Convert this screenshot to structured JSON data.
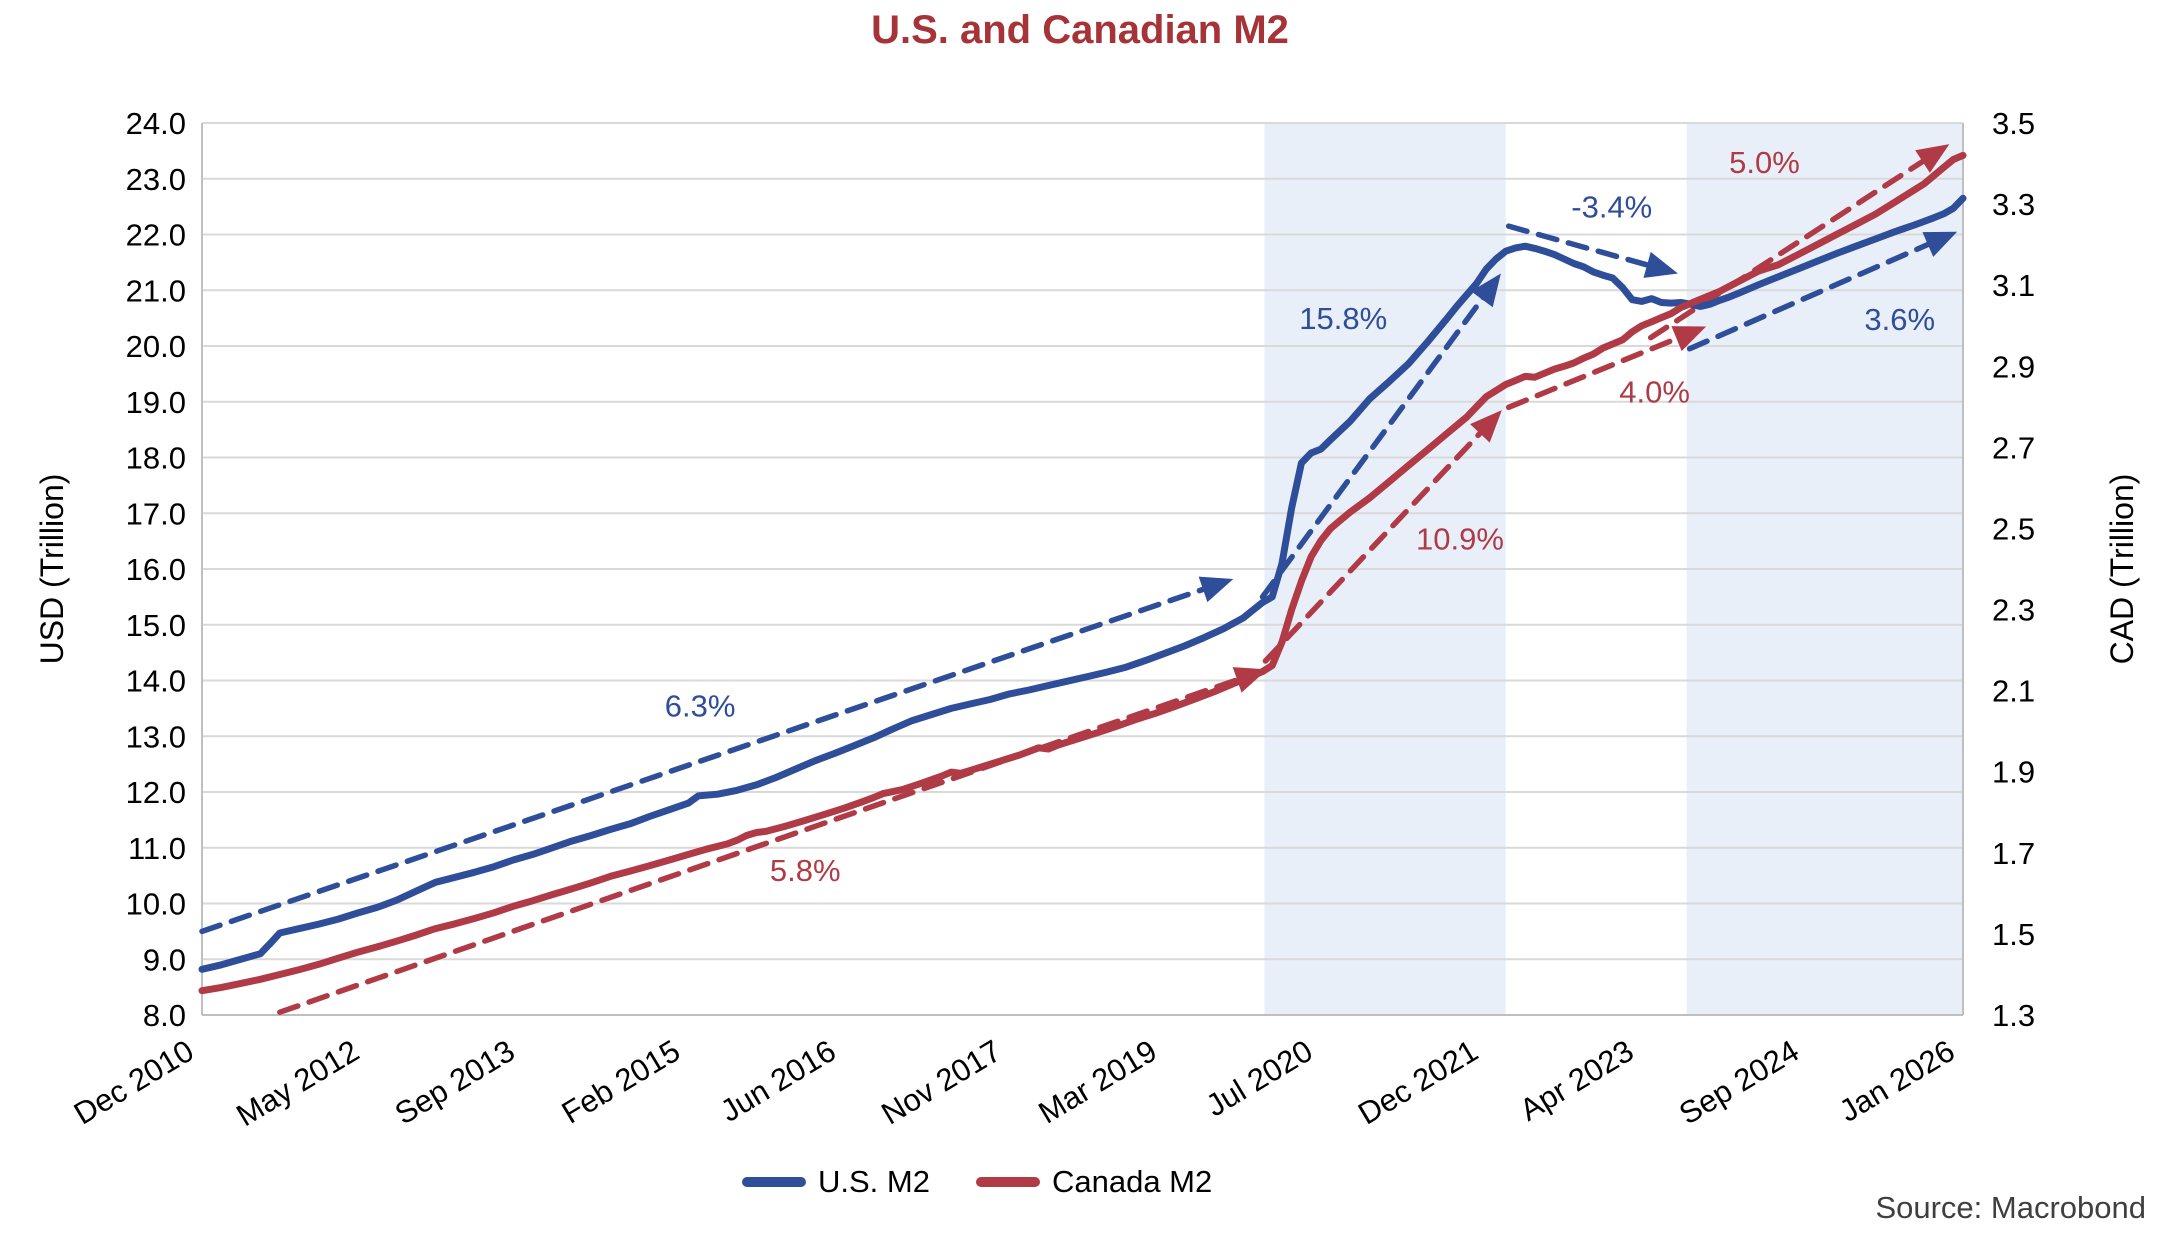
{
  "chart_data": {
    "type": "line",
    "title": "U.S. and Canadian M2",
    "ylabel_left": "USD (Trillion)",
    "ylabel_right": "CAD (Trillion)",
    "source": "Source: Macrobond",
    "colors": {
      "us_blue": "#2F4E99",
      "canada_red": "#B03B46",
      "title_red": "#A63338",
      "band_fill": "#E9EFF8",
      "gridline": "#D9D9D9",
      "axis_border": "#BFBFBF",
      "source_text": "#3F3F3F"
    },
    "y_left": {
      "min": 8.0,
      "max": 24.0,
      "step": 1.0
    },
    "y_right": {
      "min": 1.3,
      "max": 3.5,
      "step": 0.2
    },
    "x_unit": "months since Dec 2010",
    "x_range_months": 181,
    "x_ticks": [
      {
        "label": "Dec 2010",
        "m": 0
      },
      {
        "label": "May 2012",
        "m": 17
      },
      {
        "label": "Sep 2013",
        "m": 33
      },
      {
        "label": "Feb 2015",
        "m": 50
      },
      {
        "label": "Jun 2016",
        "m": 66
      },
      {
        "label": "Nov 2017",
        "m": 83
      },
      {
        "label": "Mar 2019",
        "m": 99
      },
      {
        "label": "Jul 2020",
        "m": 115
      },
      {
        "label": "Dec 2021",
        "m": 132
      },
      {
        "label": "Apr 2023",
        "m": 148
      },
      {
        "label": "Sep 2024",
        "m": 165
      },
      {
        "label": "Jan 2026",
        "m": 181
      }
    ],
    "bands": [
      {
        "from_m": 109.2,
        "to_m": 134.0
      },
      {
        "from_m": 152.6,
        "to_m": 181.0
      }
    ],
    "series": [
      {
        "name": "U.S. M2",
        "axis": "left",
        "color_key": "us_blue",
        "points": [
          [
            0,
            8.82
          ],
          [
            2,
            8.9
          ],
          [
            4,
            9.0
          ],
          [
            6,
            9.1
          ],
          [
            7,
            9.28
          ],
          [
            8,
            9.47
          ],
          [
            10,
            9.55
          ],
          [
            12,
            9.63
          ],
          [
            14,
            9.72
          ],
          [
            16,
            9.83
          ],
          [
            18,
            9.93
          ],
          [
            20,
            10.06
          ],
          [
            22,
            10.22
          ],
          [
            24,
            10.38
          ],
          [
            26,
            10.47
          ],
          [
            28,
            10.56
          ],
          [
            30,
            10.66
          ],
          [
            32,
            10.78
          ],
          [
            34,
            10.88
          ],
          [
            36,
            11.0
          ],
          [
            38,
            11.12
          ],
          [
            40,
            11.22
          ],
          [
            42,
            11.33
          ],
          [
            44,
            11.43
          ],
          [
            46,
            11.56
          ],
          [
            48,
            11.68
          ],
          [
            50,
            11.8
          ],
          [
            51,
            11.93
          ],
          [
            53,
            11.96
          ],
          [
            55,
            12.03
          ],
          [
            57,
            12.13
          ],
          [
            59,
            12.26
          ],
          [
            61,
            12.41
          ],
          [
            63,
            12.56
          ],
          [
            65,
            12.69
          ],
          [
            67,
            12.83
          ],
          [
            69,
            12.97
          ],
          [
            71,
            13.13
          ],
          [
            73,
            13.28
          ],
          [
            75,
            13.39
          ],
          [
            77,
            13.5
          ],
          [
            79,
            13.58
          ],
          [
            81,
            13.66
          ],
          [
            83,
            13.76
          ],
          [
            85,
            13.83
          ],
          [
            87,
            13.91
          ],
          [
            89,
            13.99
          ],
          [
            91,
            14.07
          ],
          [
            93,
            14.15
          ],
          [
            95,
            14.24
          ],
          [
            97,
            14.36
          ],
          [
            99,
            14.49
          ],
          [
            101,
            14.62
          ],
          [
            103,
            14.77
          ],
          [
            105,
            14.93
          ],
          [
            107,
            15.12
          ],
          [
            108,
            15.26
          ],
          [
            109,
            15.4
          ],
          [
            110,
            15.5
          ],
          [
            111,
            16.1
          ],
          [
            112,
            17.1
          ],
          [
            113,
            17.9
          ],
          [
            114,
            18.08
          ],
          [
            115,
            18.15
          ],
          [
            116,
            18.32
          ],
          [
            118,
            18.65
          ],
          [
            120,
            19.05
          ],
          [
            122,
            19.36
          ],
          [
            124,
            19.68
          ],
          [
            126,
            20.08
          ],
          [
            128,
            20.5
          ],
          [
            129,
            20.72
          ],
          [
            131,
            21.12
          ],
          [
            132,
            21.38
          ],
          [
            133,
            21.56
          ],
          [
            134,
            21.7
          ],
          [
            135,
            21.76
          ],
          [
            136,
            21.79
          ],
          [
            137,
            21.75
          ],
          [
            138,
            21.7
          ],
          [
            139,
            21.64
          ],
          [
            140,
            21.56
          ],
          [
            141,
            21.48
          ],
          [
            142,
            21.42
          ],
          [
            143,
            21.33
          ],
          [
            144,
            21.27
          ],
          [
            145,
            21.22
          ],
          [
            146,
            21.05
          ],
          [
            147,
            20.83
          ],
          [
            148,
            20.8
          ],
          [
            149,
            20.85
          ],
          [
            150,
            20.78
          ],
          [
            151,
            20.77
          ],
          [
            152,
            20.78
          ],
          [
            153,
            20.75
          ],
          [
            154,
            20.71
          ],
          [
            155,
            20.75
          ],
          [
            156,
            20.82
          ],
          [
            157,
            20.88
          ],
          [
            158,
            20.95
          ],
          [
            160,
            21.1
          ],
          [
            162,
            21.24
          ],
          [
            164,
            21.38
          ],
          [
            166,
            21.52
          ],
          [
            168,
            21.66
          ],
          [
            170,
            21.79
          ],
          [
            172,
            21.92
          ],
          [
            174,
            22.05
          ],
          [
            176,
            22.17
          ],
          [
            178,
            22.3
          ],
          [
            179,
            22.37
          ],
          [
            180,
            22.47
          ],
          [
            181,
            22.65
          ]
        ]
      },
      {
        "name": "Canada M2",
        "axis": "right",
        "color_key": "canada_red",
        "points": [
          [
            0,
            1.36
          ],
          [
            2,
            1.368
          ],
          [
            4,
            1.378
          ],
          [
            6,
            1.388
          ],
          [
            8,
            1.4
          ],
          [
            10,
            1.412
          ],
          [
            12,
            1.425
          ],
          [
            14,
            1.44
          ],
          [
            16,
            1.455
          ],
          [
            18,
            1.468
          ],
          [
            20,
            1.482
          ],
          [
            22,
            1.497
          ],
          [
            24,
            1.513
          ],
          [
            26,
            1.525
          ],
          [
            28,
            1.538
          ],
          [
            30,
            1.552
          ],
          [
            32,
            1.568
          ],
          [
            34,
            1.582
          ],
          [
            36,
            1.597
          ],
          [
            38,
            1.611
          ],
          [
            40,
            1.626
          ],
          [
            42,
            1.642
          ],
          [
            44,
            1.655
          ],
          [
            46,
            1.668
          ],
          [
            48,
            1.682
          ],
          [
            50,
            1.696
          ],
          [
            52,
            1.71
          ],
          [
            54,
            1.722
          ],
          [
            55,
            1.731
          ],
          [
            56,
            1.743
          ],
          [
            57,
            1.75
          ],
          [
            58,
            1.753
          ],
          [
            60,
            1.766
          ],
          [
            62,
            1.78
          ],
          [
            64,
            1.795
          ],
          [
            66,
            1.81
          ],
          [
            68,
            1.827
          ],
          [
            69,
            1.836
          ],
          [
            70,
            1.846
          ],
          [
            71,
            1.851
          ],
          [
            72,
            1.856
          ],
          [
            74,
            1.872
          ],
          [
            76,
            1.889
          ],
          [
            77,
            1.899
          ],
          [
            78,
            1.896
          ],
          [
            80,
            1.911
          ],
          [
            82,
            1.926
          ],
          [
            84,
            1.941
          ],
          [
            86,
            1.959
          ],
          [
            87,
            1.956
          ],
          [
            88,
            1.966
          ],
          [
            90,
            1.981
          ],
          [
            92,
            1.996
          ],
          [
            94,
            2.012
          ],
          [
            96,
            2.029
          ],
          [
            98,
            2.044
          ],
          [
            100,
            2.061
          ],
          [
            102,
            2.079
          ],
          [
            104,
            2.097
          ],
          [
            106,
            2.117
          ],
          [
            108,
            2.137
          ],
          [
            109,
            2.147
          ],
          [
            110,
            2.162
          ],
          [
            111,
            2.22
          ],
          [
            112,
            2.3
          ],
          [
            113,
            2.37
          ],
          [
            114,
            2.43
          ],
          [
            115,
            2.47
          ],
          [
            116,
            2.5
          ],
          [
            117,
            2.52
          ],
          [
            118,
            2.54
          ],
          [
            120,
            2.575
          ],
          [
            122,
            2.615
          ],
          [
            124,
            2.655
          ],
          [
            126,
            2.695
          ],
          [
            128,
            2.735
          ],
          [
            130,
            2.775
          ],
          [
            131,
            2.8
          ],
          [
            132,
            2.825
          ],
          [
            133,
            2.84
          ],
          [
            134,
            2.855
          ],
          [
            135,
            2.865
          ],
          [
            136,
            2.875
          ],
          [
            137,
            2.873
          ],
          [
            138,
            2.883
          ],
          [
            139,
            2.893
          ],
          [
            140,
            2.9
          ],
          [
            141,
            2.908
          ],
          [
            142,
            2.92
          ],
          [
            143,
            2.93
          ],
          [
            144,
            2.945
          ],
          [
            145,
            2.955
          ],
          [
            146,
            2.965
          ],
          [
            147,
            2.985
          ],
          [
            148,
            3.0
          ],
          [
            149,
            3.01
          ],
          [
            150,
            3.02
          ],
          [
            151,
            3.03
          ],
          [
            152,
            3.045
          ],
          [
            154,
            3.065
          ],
          [
            156,
            3.085
          ],
          [
            158,
            3.11
          ],
          [
            160,
            3.135
          ],
          [
            162,
            3.15
          ],
          [
            164,
            3.175
          ],
          [
            166,
            3.2
          ],
          [
            168,
            3.225
          ],
          [
            170,
            3.25
          ],
          [
            172,
            3.275
          ],
          [
            174,
            3.305
          ],
          [
            176,
            3.335
          ],
          [
            177,
            3.35
          ],
          [
            178,
            3.37
          ],
          [
            179,
            3.39
          ],
          [
            180,
            3.41
          ],
          [
            181,
            3.42
          ]
        ]
      }
    ],
    "trend_lines": [
      {
        "label": "6.3%",
        "color_key": "us_blue",
        "from": [
          0,
          9.5
        ],
        "to": [
          106,
          15.82
        ],
        "label_at": [
          51.2,
          13.55
        ]
      },
      {
        "label": "5.8%",
        "color_key": "canada_red",
        "from": [
          8,
          8.05
        ],
        "to": [
          109.5,
          14.2
        ],
        "label_at": [
          62,
          10.6
        ]
      },
      {
        "label": "15.8%",
        "color_key": "us_blue",
        "from": [
          109,
          15.5
        ],
        "to": [
          133.5,
          21.3
        ],
        "label_at": [
          117.3,
          20.5
        ]
      },
      {
        "label": "10.9%",
        "color_key": "canada_red",
        "from": [
          109.3,
          14.35
        ],
        "to": [
          133.6,
          18.85
        ],
        "label_at": [
          129.3,
          16.55
        ]
      },
      {
        "label": "-3.4%",
        "color_key": "us_blue",
        "from": [
          134.3,
          22.15
        ],
        "to": [
          151.7,
          21.3
        ],
        "label_at": [
          144.9,
          22.5
        ]
      },
      {
        "label": "4.0%",
        "color_key": "canada_red",
        "from": [
          134.3,
          18.9
        ],
        "to": [
          154.6,
          20.35
        ],
        "label_at": [
          149.3,
          19.18
        ]
      },
      {
        "label": "5.0%",
        "color_key": "canada_red",
        "from": [
          148.9,
          20.15
        ],
        "to": [
          179.6,
          23.62
        ],
        "label_at": [
          160.6,
          23.3
        ]
      },
      {
        "label": "3.6%",
        "color_key": "us_blue",
        "from": [
          152.9,
          19.95
        ],
        "to": [
          180.4,
          22.05
        ],
        "label_at": [
          174.5,
          20.48
        ]
      }
    ],
    "legend": [
      "U.S. M2",
      "Canada M2"
    ]
  }
}
